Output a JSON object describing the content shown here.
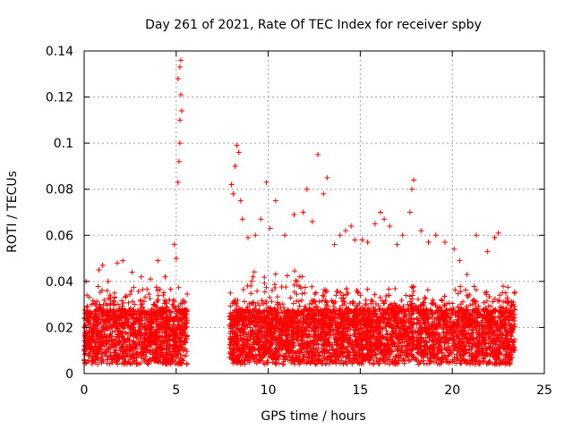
{
  "chart_data": {
    "type": "scatter",
    "title": "Day 261 of 2021, Rate Of TEC Index for receiver spby",
    "xlabel": "GPS time / hours",
    "ylabel": "ROTI / TECUs",
    "xlim": [
      0,
      25
    ],
    "ylim": [
      0,
      0.14
    ],
    "xticks": [
      "0",
      "5",
      "10",
      "15",
      "20",
      "25"
    ],
    "yticks": [
      "0",
      "0.02",
      "0.04",
      "0.06",
      "0.08",
      "0.1",
      "0.12",
      "0.14"
    ],
    "grid": true,
    "marker": "+",
    "series_color": "#ff0000",
    "observed_segments": [
      {
        "x_start": 0.0,
        "x_end": 5.6
      },
      {
        "x_start": 7.9,
        "x_end": 23.4
      }
    ],
    "points": [
      [
        0.1,
        0.04
      ],
      [
        0.4,
        0.03
      ],
      [
        0.8,
        0.045
      ],
      [
        1.0,
        0.047
      ],
      [
        1.3,
        0.04
      ],
      [
        1.8,
        0.048
      ],
      [
        2.1,
        0.049
      ],
      [
        2.6,
        0.044
      ],
      [
        3.1,
        0.042
      ],
      [
        3.6,
        0.041
      ],
      [
        4.0,
        0.049
      ],
      [
        4.4,
        0.042
      ],
      [
        4.9,
        0.056
      ],
      [
        5.0,
        0.05
      ],
      [
        5.1,
        0.083
      ],
      [
        5.15,
        0.092
      ],
      [
        5.2,
        0.1
      ],
      [
        5.2,
        0.11
      ],
      [
        5.25,
        0.121
      ],
      [
        5.1,
        0.128
      ],
      [
        5.2,
        0.133
      ],
      [
        5.25,
        0.136
      ],
      [
        5.3,
        0.114
      ],
      [
        8.0,
        0.082
      ],
      [
        8.1,
        0.078
      ],
      [
        8.2,
        0.09
      ],
      [
        8.3,
        0.099
      ],
      [
        8.4,
        0.096
      ],
      [
        8.5,
        0.075
      ],
      [
        8.6,
        0.067
      ],
      [
        8.9,
        0.059
      ],
      [
        9.3,
        0.06
      ],
      [
        9.6,
        0.067
      ],
      [
        9.9,
        0.083
      ],
      [
        10.1,
        0.063
      ],
      [
        10.4,
        0.075
      ],
      [
        10.9,
        0.06
      ],
      [
        11.4,
        0.069
      ],
      [
        11.9,
        0.07
      ],
      [
        12.1,
        0.08
      ],
      [
        12.4,
        0.066
      ],
      [
        12.7,
        0.095
      ],
      [
        13.0,
        0.078
      ],
      [
        13.2,
        0.085
      ],
      [
        13.6,
        0.056
      ],
      [
        13.9,
        0.06
      ],
      [
        14.2,
        0.062
      ],
      [
        14.5,
        0.064
      ],
      [
        14.7,
        0.058
      ],
      [
        15.1,
        0.058
      ],
      [
        15.4,
        0.057
      ],
      [
        15.8,
        0.065
      ],
      [
        16.1,
        0.07
      ],
      [
        16.3,
        0.067
      ],
      [
        16.6,
        0.064
      ],
      [
        17.0,
        0.056
      ],
      [
        17.3,
        0.06
      ],
      [
        17.7,
        0.07
      ],
      [
        17.8,
        0.08
      ],
      [
        17.9,
        0.084
      ],
      [
        18.3,
        0.062
      ],
      [
        18.7,
        0.057
      ],
      [
        19.1,
        0.06
      ],
      [
        19.6,
        0.057
      ],
      [
        20.1,
        0.054
      ],
      [
        20.4,
        0.049
      ],
      [
        20.8,
        0.043
      ],
      [
        21.3,
        0.06
      ],
      [
        21.9,
        0.053
      ],
      [
        22.3,
        0.059
      ],
      [
        22.5,
        0.061
      ],
      [
        22.9,
        0.035
      ],
      [
        23.3,
        0.03
      ]
    ]
  }
}
